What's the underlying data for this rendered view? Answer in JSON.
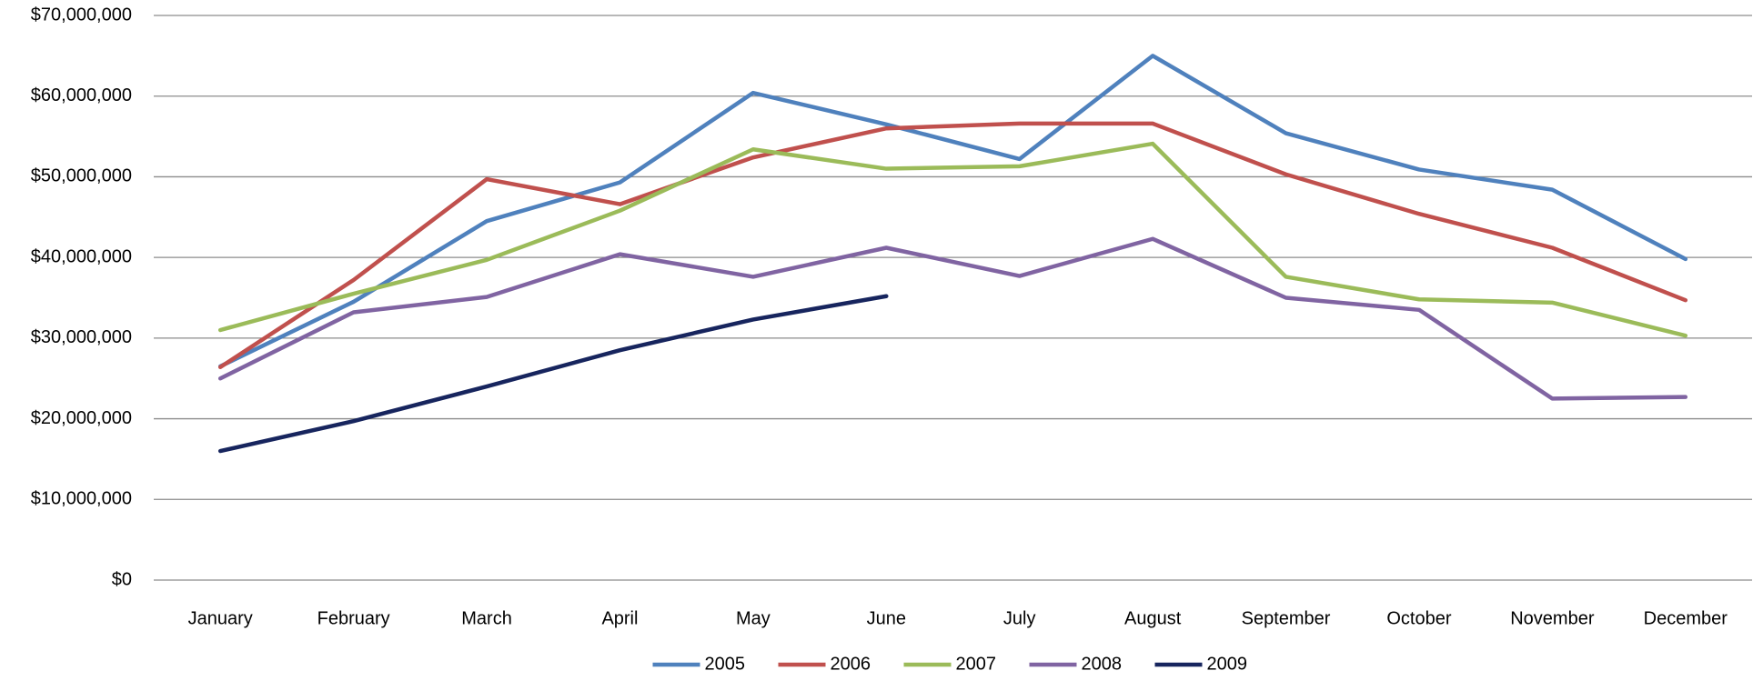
{
  "chart_data": {
    "type": "line",
    "categories": [
      "January",
      "February",
      "March",
      "April",
      "May",
      "June",
      "July",
      "August",
      "September",
      "October",
      "November",
      "December"
    ],
    "series": [
      {
        "name": "2005",
        "color": "#4f81bd",
        "values": [
          26500000,
          34500000,
          44500000,
          49300000,
          60400000,
          56500000,
          52200000,
          65000000,
          55400000,
          50900000,
          48400000,
          39800000
        ]
      },
      {
        "name": "2006",
        "color": "#c0504d",
        "values": [
          26400000,
          37200000,
          49700000,
          46600000,
          52400000,
          56000000,
          56600000,
          56600000,
          50300000,
          45400000,
          41200000,
          34700000
        ]
      },
      {
        "name": "2007",
        "color": "#9bbb59",
        "values": [
          31000000,
          35500000,
          39700000,
          45800000,
          53400000,
          51000000,
          51300000,
          54100000,
          37600000,
          34800000,
          34400000,
          30300000
        ]
      },
      {
        "name": "2008",
        "color": "#8064a2",
        "values": [
          25000000,
          33200000,
          35100000,
          40400000,
          37600000,
          41200000,
          37700000,
          42300000,
          35000000,
          33500000,
          22500000,
          22700000
        ]
      },
      {
        "name": "2009",
        "color": "#17255e",
        "values": [
          16000000,
          19700000,
          24000000,
          28500000,
          32300000,
          35200000,
          null,
          null,
          null,
          null,
          null,
          null
        ]
      }
    ],
    "ylim": [
      0,
      70000000
    ],
    "yticks": [
      {
        "value": 0,
        "label": "$0"
      },
      {
        "value": 10000000,
        "label": "$10,000,000"
      },
      {
        "value": 20000000,
        "label": "$20,000,000"
      },
      {
        "value": 30000000,
        "label": "$30,000,000"
      },
      {
        "value": 40000000,
        "label": "$40,000,000"
      },
      {
        "value": 50000000,
        "label": "$50,000,000"
      },
      {
        "value": 60000000,
        "label": "$60,000,000"
      },
      {
        "value": 70000000,
        "label": "$70,000,000"
      }
    ],
    "grid": true,
    "legend": "bottom"
  }
}
